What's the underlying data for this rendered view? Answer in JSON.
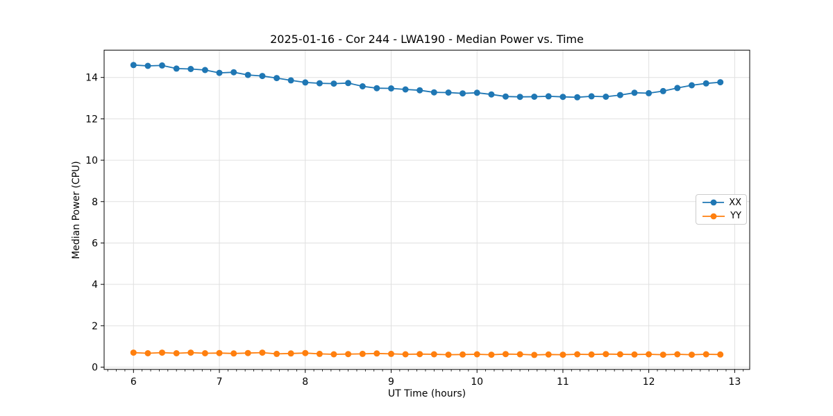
{
  "chart_data": {
    "type": "line",
    "title": "2025-01-16 - Cor 244 - LWA190 - Median Power vs. Time",
    "xlabel": "UT Time (hours)",
    "ylabel": "Median Power (CPU)",
    "xlim": [
      5.658,
      13.175
    ],
    "ylim": [
      -0.11,
      15.32
    ],
    "x_major_ticks": [
      6,
      7,
      8,
      9,
      10,
      11,
      12,
      13
    ],
    "x_minor_tick_step": 0.1,
    "y_major_ticks": [
      0,
      2,
      4,
      6,
      8,
      10,
      12,
      14
    ],
    "grid": true,
    "grid_color": "#e0e0e0",
    "spine_color": "#000000",
    "legend_position": "center right",
    "x": [
      6.0,
      6.167,
      6.333,
      6.5,
      6.667,
      6.833,
      7.0,
      7.167,
      7.333,
      7.5,
      7.667,
      7.833,
      8.0,
      8.167,
      8.333,
      8.5,
      8.667,
      8.833,
      9.0,
      9.167,
      9.333,
      9.5,
      9.667,
      9.833,
      10.0,
      10.167,
      10.333,
      10.5,
      10.667,
      10.833,
      11.0,
      11.167,
      11.333,
      11.5,
      11.667,
      11.833,
      12.0,
      12.167,
      12.333,
      12.5,
      12.667,
      12.833
    ],
    "series": [
      {
        "name": "XX",
        "color": "#1f77b4",
        "values": [
          14.6,
          14.56,
          14.58,
          14.43,
          14.41,
          14.36,
          14.22,
          14.25,
          14.12,
          14.07,
          13.97,
          13.86,
          13.76,
          13.72,
          13.7,
          13.73,
          13.57,
          13.48,
          13.47,
          13.42,
          13.38,
          13.28,
          13.27,
          13.23,
          13.26,
          13.18,
          13.08,
          13.06,
          13.07,
          13.09,
          13.06,
          13.04,
          13.09,
          13.07,
          13.15,
          13.26,
          13.24,
          13.34,
          13.49,
          13.62,
          13.71,
          13.77
        ]
      },
      {
        "name": "YY",
        "color": "#ff7f0e",
        "values": [
          0.7,
          0.67,
          0.7,
          0.67,
          0.7,
          0.67,
          0.68,
          0.66,
          0.68,
          0.7,
          0.64,
          0.66,
          0.68,
          0.64,
          0.62,
          0.63,
          0.64,
          0.66,
          0.64,
          0.62,
          0.63,
          0.62,
          0.6,
          0.61,
          0.62,
          0.6,
          0.63,
          0.62,
          0.59,
          0.61,
          0.6,
          0.62,
          0.61,
          0.63,
          0.62,
          0.61,
          0.62,
          0.6,
          0.62,
          0.6,
          0.62,
          0.61
        ]
      }
    ]
  }
}
